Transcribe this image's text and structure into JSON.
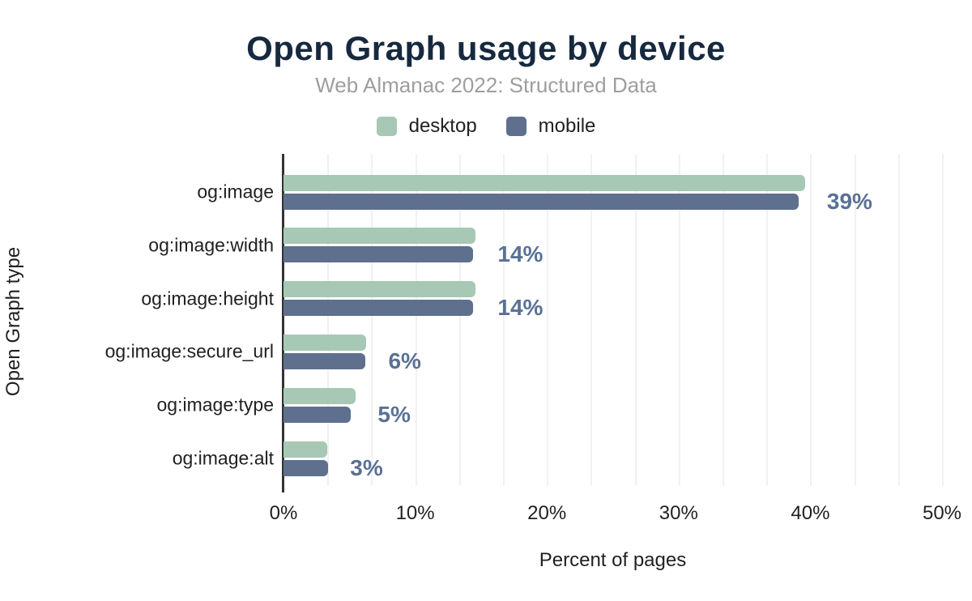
{
  "chart_data": {
    "type": "bar",
    "orientation": "horizontal",
    "title": "Open Graph usage by device",
    "subtitle": "Web Almanac 2022: Structured Data",
    "xlabel": "Percent of pages",
    "ylabel": "Open Graph type",
    "xlim": [
      0,
      50
    ],
    "x_ticks": [
      "0%",
      "10%",
      "20%",
      "30%",
      "40%",
      "50%"
    ],
    "grid": "vertical minor gridlines, light gray, every 3.33%",
    "legend_position": "top-center",
    "categories": [
      "og:image",
      "og:image:width",
      "og:image:height",
      "og:image:secure_url",
      "og:image:type",
      "og:image:alt"
    ],
    "series": [
      {
        "name": "desktop",
        "color": "#a6c8b5",
        "values": [
          39.6,
          14.6,
          14.6,
          6.3,
          5.5,
          3.3
        ]
      },
      {
        "name": "mobile",
        "color": "#5e708d",
        "values": [
          39.1,
          14.4,
          14.4,
          6.2,
          5.1,
          3.4
        ]
      }
    ],
    "value_labels": [
      "39%",
      "14%",
      "14%",
      "6%",
      "5%",
      "3%"
    ]
  },
  "colors": {
    "title": "#16293f",
    "subtitle": "#9e9e9e",
    "axis_text": "#212121",
    "axis_line": "#333333",
    "gridline": "#f1f1f1",
    "value_label": "#5a7194"
  }
}
